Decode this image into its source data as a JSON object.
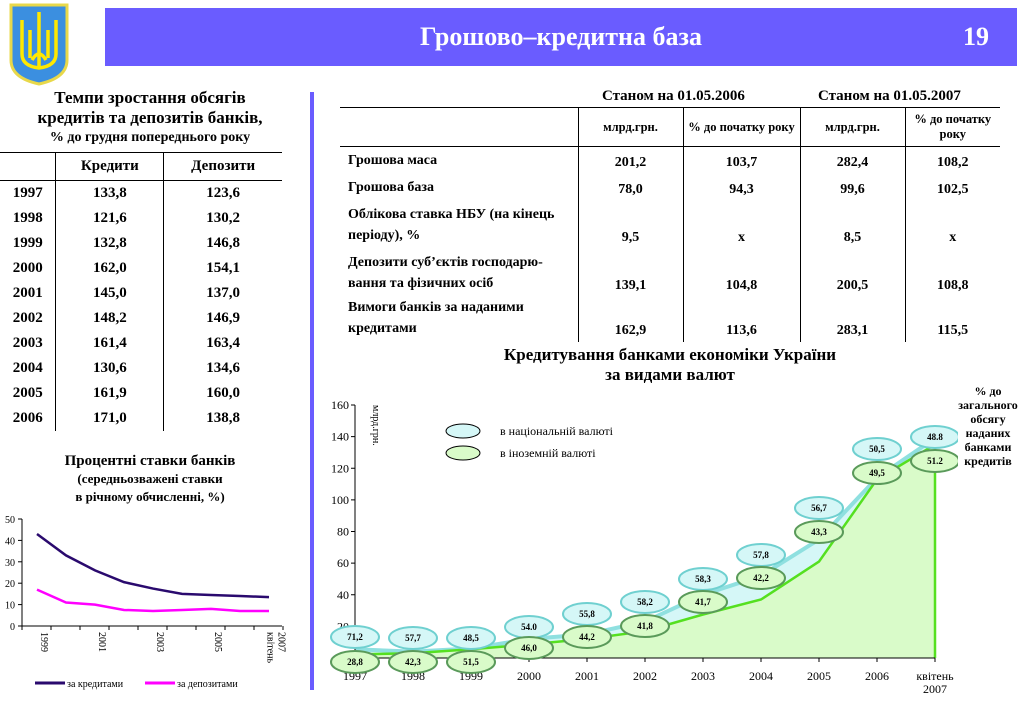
{
  "header": {
    "title": "Грошово–кредитна база",
    "page": "19"
  },
  "left_table": {
    "title_line1": "Темпи зростання обсягів",
    "title_line2": "кредитів та депозитів банків,",
    "subtitle": "% до грудня попереднього року",
    "columns": [
      "",
      "Кредити",
      "Депозити"
    ],
    "rows": [
      [
        "1997",
        "133,8",
        "123,6"
      ],
      [
        "1998",
        "121,6",
        "130,2"
      ],
      [
        "1999",
        "132,8",
        "146,8"
      ],
      [
        "2000",
        "162,0",
        "154,1"
      ],
      [
        "2001",
        "145,0",
        "137,0"
      ],
      [
        "2002",
        "148,2",
        "146,9"
      ],
      [
        "2003",
        "161,4",
        "163,4"
      ],
      [
        "2004",
        "130,6",
        "134,6"
      ],
      [
        "2005",
        "161,9",
        "160,0"
      ],
      [
        "2006",
        "171,0",
        "138,8"
      ]
    ]
  },
  "right_table": {
    "group1": "Станом на 01.05.2006",
    "group2": "Станом на 01.05.2007",
    "columns": [
      "",
      "млрд.грн.",
      "% до початку року",
      "млрд.грн.",
      "% до початку року"
    ],
    "rows": [
      [
        "Грошова маса",
        "201,2",
        "103,7",
        "282,4",
        "108,2"
      ],
      [
        "Грошова база",
        "78,0",
        "94,3",
        "99,6",
        "102,5"
      ],
      [
        "Облікова ставка НБУ (на кінець періоду), %",
        "9,5",
        "x",
        "8,5",
        "x"
      ],
      [
        "Депозити суб’єктів господарю-вання та фізичних осіб",
        "139,1",
        "104,8",
        "200,5",
        "108,8"
      ],
      [
        "Вимоги банків за наданими кредитами",
        "162,9",
        "113,6",
        "283,1",
        "115,5"
      ]
    ]
  },
  "chart_data": [
    {
      "type": "line",
      "title": "Процентні ставки банків",
      "subtitle": "(середньозважені ставки",
      "subtitle2": "в річному обчисленні, %)",
      "categories": [
        "1999",
        "2000",
        "2001",
        "2002",
        "2003",
        "2004",
        "2005",
        "2006",
        "квітень 2007"
      ],
      "tick_labels": [
        "1999",
        "2001",
        "2003",
        "2005",
        "квітень 2007"
      ],
      "ylim": [
        0,
        50
      ],
      "yticks": [
        0,
        10,
        20,
        30,
        40,
        50
      ],
      "legend": "bottom",
      "series": [
        {
          "name": "за кредитами",
          "color": "#2a0a6e",
          "values": [
            43,
            33,
            26,
            20.5,
            17.5,
            15,
            14.5,
            14,
            13.5
          ]
        },
        {
          "name": "за депозитами",
          "color": "#ff00ff",
          "values": [
            17,
            11,
            10,
            7.5,
            7,
            7.5,
            8,
            7,
            7
          ]
        }
      ]
    },
    {
      "type": "area",
      "title": "Кредитування банками економіки України",
      "title2": "за видами валют",
      "ylabel": "млрд.грн.",
      "ylim": [
        0,
        160
      ],
      "yticks": [
        0,
        20,
        40,
        60,
        80,
        100,
        120,
        140,
        160
      ],
      "categories": [
        "1997",
        "1998",
        "1999",
        "2000",
        "2001",
        "2002",
        "2003",
        "2004",
        "2005",
        "2006",
        "квітень 2007"
      ],
      "legend": "top-left",
      "side_note": "% до загального обсягу наданих банками кредитів",
      "series": [
        {
          "name": "в національній валюті",
          "color": "#9ee6e6",
          "total_values": [
            5.5,
            4,
            6,
            12,
            15,
            23,
            40,
            52,
            75,
            114,
            139
          ],
          "share_labels": [
            "71,2",
            "57,7",
            "48,5",
            "54.0",
            "55,8",
            "58,2",
            "58,3",
            "57,8",
            "56,7",
            "50,5",
            "48.8"
          ]
        },
        {
          "name": "в іноземній валюті",
          "color": "#66e633",
          "values": [
            2.3,
            3,
            5.5,
            8.6,
            12,
            17,
            27.5,
            37,
            61,
            113,
            135
          ],
          "share_labels": [
            "28,8",
            "42,3",
            "51,5",
            "46,0",
            "44,2",
            "41,8",
            "41,7",
            "42,2",
            "43,3",
            "49,5",
            "51.2"
          ]
        }
      ]
    }
  ]
}
